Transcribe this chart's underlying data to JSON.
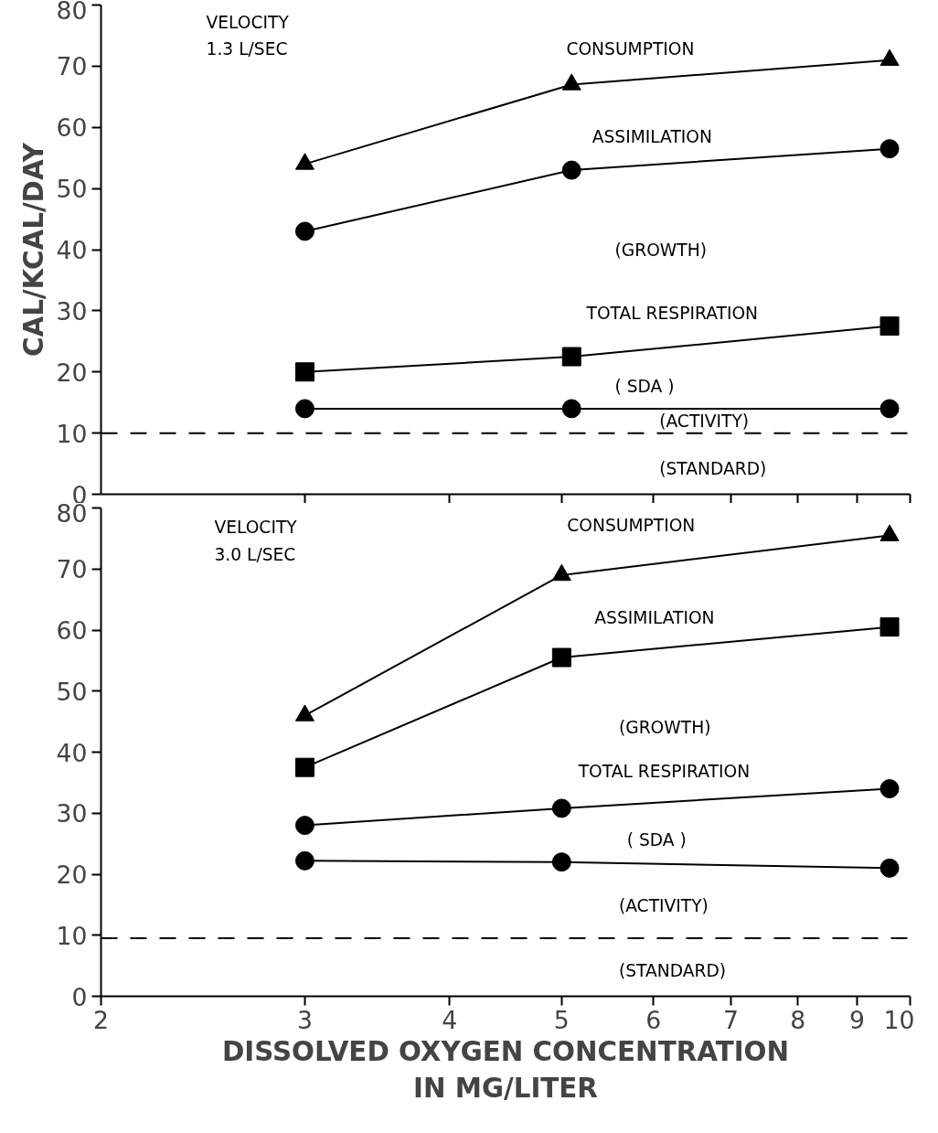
{
  "chart_data": [
    {
      "type": "line",
      "ylabel": "CAL/KCAL/DAY",
      "log": "x",
      "grid": false,
      "tick_labels": "y",
      "x": [
        3,
        5.1,
        9.6
      ],
      "xlim": [
        2,
        10
      ],
      "xticks": [
        {
          "value": 3,
          "label": null
        },
        {
          "value": 4,
          "label": null
        },
        {
          "value": 5,
          "label": null
        },
        {
          "value": 6,
          "label": null
        },
        {
          "value": 7,
          "label": null
        },
        {
          "value": 8,
          "label": null
        },
        {
          "value": 9,
          "label": null
        },
        {
          "value": 10,
          "label": null
        }
      ],
      "ylim": [
        0,
        80
      ],
      "yticks": [
        0,
        10,
        20,
        30,
        40,
        50,
        60,
        70,
        80
      ],
      "series": [
        {
          "color": "#000000",
          "marker": "triangle",
          "values": [
            54,
            67,
            71
          ]
        },
        {
          "color": "#000000",
          "marker": "circle",
          "values": [
            43,
            53,
            56.5
          ]
        },
        {
          "color": "#000000",
          "marker": "square",
          "values": [
            20,
            22.5,
            27.5
          ]
        },
        {
          "color": "#000000",
          "marker": "circle",
          "values": [
            14,
            14,
            14
          ]
        }
      ],
      "ref_lines": [
        {
          "axis": "y",
          "value": 10,
          "color": "#000000",
          "line_style": "dashed"
        }
      ],
      "annotations": [
        "VELOCITY",
        "1.3 L/SEC",
        "CONSUMPTION",
        "ASSIMILATION",
        "(GROWTH)",
        "TOTAL RESPIRATION",
        "( SDA )",
        "(ACTIVITY)",
        "(STANDARD)"
      ]
    },
    {
      "type": "line",
      "xlabel": "DISSOLVED OXYGEN CONCENTRATION\nIN MG/LITER",
      "log": "x",
      "grid": false,
      "x": [
        3,
        5,
        9.6
      ],
      "xlim": [
        2,
        10
      ],
      "xticks": [
        2,
        3,
        4,
        5,
        6,
        7,
        8,
        9,
        10
      ],
      "ylim": [
        0,
        80
      ],
      "yticks": [
        0,
        10,
        20,
        30,
        40,
        50,
        60,
        70,
        80
      ],
      "series": [
        {
          "color": "#000000",
          "marker": "triangle",
          "values": [
            46,
            69,
            75.5
          ]
        },
        {
          "color": "#000000",
          "marker": "square",
          "values": [
            37.5,
            55.5,
            60.5
          ]
        },
        {
          "color": "#000000",
          "marker": "circle",
          "values": [
            28,
            30.8,
            34
          ]
        },
        {
          "color": "#000000",
          "marker": "circle",
          "values": [
            22.2,
            22,
            21
          ]
        }
      ],
      "ref_lines": [
        {
          "axis": "y",
          "value": 9.5,
          "color": "#000000",
          "line_style": "dashed"
        }
      ],
      "annotations": [
        "VELOCITY",
        "3.0 L/SEC",
        "CONSUMPTION",
        "ASSIMILATION",
        "(GROWTH)",
        "TOTAL RESPIRATION",
        "( SDA )",
        "(ACTIVITY)",
        "(STANDARD)"
      ]
    }
  ]
}
